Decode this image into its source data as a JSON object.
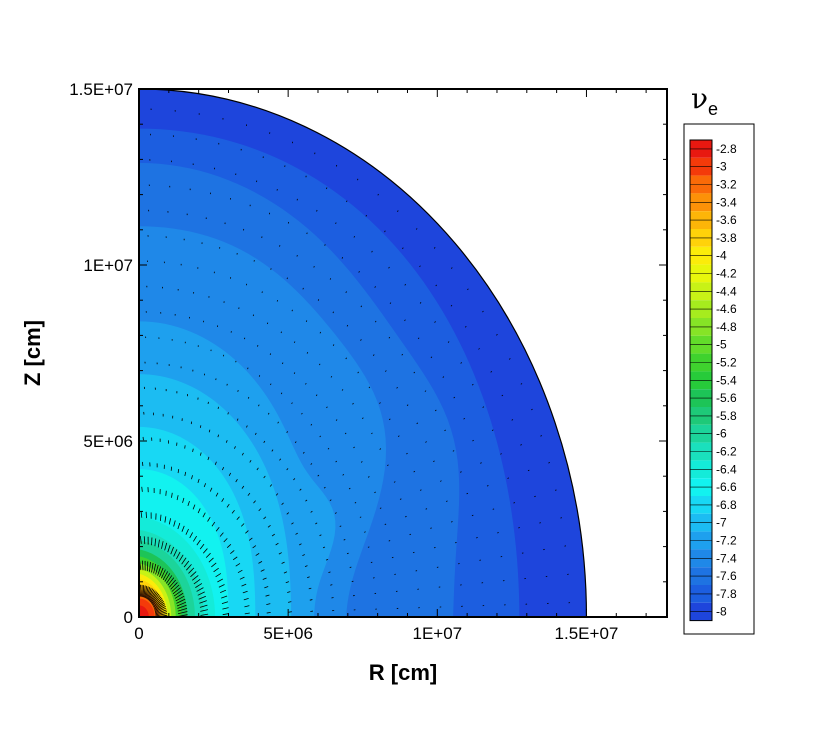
{
  "chart_data": {
    "type": "heatmap",
    "title": "",
    "xlabel": "R [cm]",
    "ylabel": "Z [cm]",
    "xlim": [
      0,
      17700000
    ],
    "ylim": [
      0,
      15000000
    ],
    "x_ticks": [
      {
        "value": 0,
        "label": "0"
      },
      {
        "value": 5000000,
        "label": "5E+06"
      },
      {
        "value": 10000000,
        "label": "1E+07"
      },
      {
        "value": 15000000,
        "label": "1.5E+07"
      }
    ],
    "y_ticks": [
      {
        "value": 0,
        "label": "0"
      },
      {
        "value": 5000000,
        "label": "5E+06"
      },
      {
        "value": 10000000,
        "label": "1E+07"
      },
      {
        "value": 15000000,
        "label": "1.5E+07"
      }
    ],
    "domain_outer_radius": 15000000,
    "legend": {
      "title": "ν",
      "title_subscript": "e",
      "placement": "right",
      "levels": [
        {
          "label": "-2.8",
          "color": "#e81810"
        },
        {
          "label": "-3",
          "color": "#f43a0a"
        },
        {
          "label": "-3.2",
          "color": "#fa6a08"
        },
        {
          "label": "-3.4",
          "color": "#fc9108"
        },
        {
          "label": "-3.6",
          "color": "#fdb508"
        },
        {
          "label": "-3.8",
          "color": "#ffd20a"
        },
        {
          "label": "-4",
          "color": "#fbec0a"
        },
        {
          "label": "-4.2",
          "color": "#e8f60c"
        },
        {
          "label": "-4.4",
          "color": "#c8f216"
        },
        {
          "label": "-4.6",
          "color": "#a6ec1e"
        },
        {
          "label": "-4.8",
          "color": "#86e426"
        },
        {
          "label": "-5",
          "color": "#62dc2a"
        },
        {
          "label": "-5.2",
          "color": "#3fd22e"
        },
        {
          "label": "-5.4",
          "color": "#27cb3a"
        },
        {
          "label": "-5.6",
          "color": "#1dc457"
        },
        {
          "label": "-5.8",
          "color": "#1ec978"
        },
        {
          "label": "-6",
          "color": "#1cd49a"
        },
        {
          "label": "-6.2",
          "color": "#1ae0bd"
        },
        {
          "label": "-6.4",
          "color": "#14ebd9"
        },
        {
          "label": "-6.6",
          "color": "#12f2f0"
        },
        {
          "label": "-6.8",
          "color": "#18d8f4"
        },
        {
          "label": "-7",
          "color": "#1cbcf2"
        },
        {
          "label": "-7.2",
          "color": "#1ea0ee"
        },
        {
          "label": "-7.4",
          "color": "#1f88e8"
        },
        {
          "label": "-7.6",
          "color": "#1e73e2"
        },
        {
          "label": "-7.8",
          "color": "#1c5ee0"
        },
        {
          "label": "-8",
          "color": "#1e45dc"
        }
      ]
    }
  }
}
